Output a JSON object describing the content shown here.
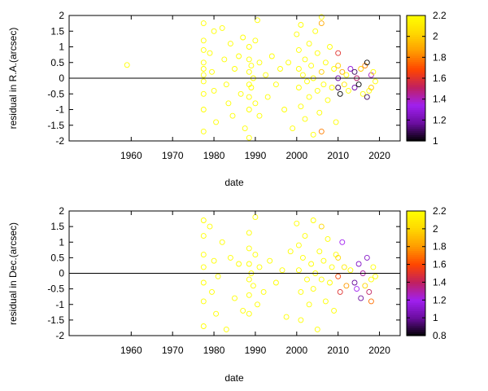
{
  "chart_data": [
    {
      "type": "scatter",
      "xlabel": "date",
      "ylabel": "residual in R.A.(arcsec)",
      "xlim": [
        1945,
        2025
      ],
      "ylim": [
        -2,
        2
      ],
      "x_ticks": [
        1960,
        1970,
        1980,
        1990,
        2000,
        2010,
        2020
      ],
      "y_ticks": [
        -2,
        -1.5,
        -1,
        -0.5,
        0,
        0.5,
        1,
        1.5,
        2
      ],
      "zero_line": 0,
      "grid": false,
      "colorbar": {
        "range": [
          1,
          2.2
        ],
        "ticks": [
          1,
          1.2,
          1.4,
          1.6,
          1.8,
          2,
          2.2
        ],
        "palette": [
          "#000000",
          "#6a0d9e",
          "#a020f0",
          "#c02060",
          "#ff4500",
          "#ff9a00",
          "#ffd700",
          "#ffff00"
        ]
      },
      "series": [
        {
          "marker": "open-circle",
          "points": [
            [
              1959.0,
              0.42,
              2.2
            ],
            [
              1977.5,
              1.75,
              2.2
            ],
            [
              1977.5,
              1.2,
              2.2
            ],
            [
              1977.5,
              0.9,
              2.2
            ],
            [
              1977.5,
              0.5,
              2.2
            ],
            [
              1977.5,
              0.3,
              2.2
            ],
            [
              1977.5,
              0.1,
              2.2
            ],
            [
              1977.5,
              -0.1,
              2.2
            ],
            [
              1977.5,
              -0.5,
              2.2
            ],
            [
              1977.5,
              -1.0,
              2.2
            ],
            [
              1977.5,
              -1.7,
              2.2
            ],
            [
              1979.0,
              0.8,
              2.2
            ],
            [
              1979.5,
              0.2,
              2.2
            ],
            [
              1980.0,
              -0.4,
              2.2
            ],
            [
              1980.5,
              -1.4,
              2.2
            ],
            [
              1980.0,
              1.5,
              2.2
            ],
            [
              1982.0,
              1.6,
              2.2
            ],
            [
              1982.5,
              0.6,
              2.2
            ],
            [
              1983.0,
              -0.2,
              2.2
            ],
            [
              1983.5,
              -0.8,
              2.2
            ],
            [
              1984.0,
              1.1,
              2.2
            ],
            [
              1984.5,
              -1.2,
              2.2
            ],
            [
              1985.0,
              0.3,
              2.2
            ],
            [
              1986.0,
              0.7,
              2.2
            ],
            [
              1986.5,
              -0.5,
              2.2
            ],
            [
              1987.0,
              1.3,
              2.2
            ],
            [
              1987.5,
              -1.6,
              2.2
            ],
            [
              1988.5,
              1.0,
              2.2
            ],
            [
              1988.5,
              0.6,
              2.2
            ],
            [
              1988.5,
              0.2,
              2.2
            ],
            [
              1988.5,
              -0.2,
              2.2
            ],
            [
              1988.5,
              -0.6,
              2.2
            ],
            [
              1988.5,
              -1.0,
              2.2
            ],
            [
              1988.5,
              -1.9,
              2.2
            ],
            [
              1989.0,
              0.4,
              2.2
            ],
            [
              1989.0,
              -0.3,
              2.2
            ],
            [
              1989.5,
              0.0,
              2.2
            ],
            [
              1990.0,
              1.2,
              2.2
            ],
            [
              1990.0,
              -0.8,
              2.2
            ],
            [
              1990.5,
              1.85,
              2.2
            ],
            [
              1991.0,
              0.5,
              2.2
            ],
            [
              1991.0,
              -1.2,
              2.2
            ],
            [
              1992.5,
              0.1,
              2.2
            ],
            [
              1993.0,
              -0.6,
              2.2
            ],
            [
              1994.0,
              0.7,
              2.2
            ],
            [
              1995.0,
              -0.2,
              2.2
            ],
            [
              1996.0,
              0.3,
              2.2
            ],
            [
              1997.0,
              -1.0,
              2.2
            ],
            [
              1998.0,
              0.5,
              2.2
            ],
            [
              1999.0,
              -1.6,
              2.2
            ],
            [
              2000.0,
              1.4,
              2.2
            ],
            [
              2000.5,
              0.9,
              2.2
            ],
            [
              2000.5,
              0.3,
              2.2
            ],
            [
              2000.5,
              -0.3,
              2.2
            ],
            [
              2001.0,
              -0.9,
              2.2
            ],
            [
              2001.0,
              1.7,
              2.2
            ],
            [
              2001.5,
              0.1,
              2.2
            ],
            [
              2002.0,
              -1.3,
              2.2
            ],
            [
              2002.0,
              0.6,
              2.2
            ],
            [
              2002.5,
              -0.1,
              2.2
            ],
            [
              2003.0,
              1.1,
              2.2
            ],
            [
              2003.0,
              -0.6,
              2.2
            ],
            [
              2003.5,
              0.4,
              2.2
            ],
            [
              2004.0,
              -1.8,
              2.2
            ],
            [
              2004.0,
              0.0,
              2.2
            ],
            [
              2004.5,
              1.5,
              2.2
            ],
            [
              2005.0,
              -0.4,
              2.2
            ],
            [
              2005.0,
              0.8,
              2.2
            ],
            [
              2005.5,
              -1.1,
              2.2
            ],
            [
              2006.0,
              1.95,
              2.2
            ],
            [
              2006.0,
              1.75,
              1.9
            ],
            [
              2006.0,
              0.2,
              2.0
            ],
            [
              2006.0,
              -1.7,
              1.8
            ],
            [
              2006.5,
              -0.2,
              2.2
            ],
            [
              2007.0,
              0.5,
              2.2
            ],
            [
              2007.5,
              -0.7,
              2.2
            ],
            [
              2008.0,
              1.0,
              2.2
            ],
            [
              2008.5,
              -0.3,
              2.2
            ],
            [
              2009.0,
              0.3,
              2.2
            ],
            [
              2009.5,
              -1.4,
              2.2
            ],
            [
              2010.0,
              0.8,
              1.6
            ],
            [
              2010.0,
              0.4,
              2.0
            ],
            [
              2010.0,
              0.0,
              1.2
            ],
            [
              2010.0,
              -0.3,
              1.1
            ],
            [
              2010.5,
              -0.5,
              1.0
            ],
            [
              2011.0,
              0.2,
              1.9
            ],
            [
              2011.5,
              -0.2,
              2.1
            ],
            [
              2012.0,
              0.1,
              2.2
            ],
            [
              2012.5,
              -0.4,
              2.2
            ],
            [
              2013.0,
              0.3,
              1.3
            ],
            [
              2014.0,
              0.2,
              1.1
            ],
            [
              2014.0,
              -0.3,
              1.2
            ],
            [
              2014.5,
              0.0,
              1.5
            ],
            [
              2015.0,
              -0.2,
              1.0
            ],
            [
              2015.5,
              0.3,
              2.0
            ],
            [
              2016.0,
              -0.5,
              2.2
            ],
            [
              2016.5,
              0.4,
              1.8
            ],
            [
              2017.0,
              0.5,
              1.0
            ],
            [
              2017.0,
              -0.6,
              1.1
            ],
            [
              2017.5,
              -0.4,
              2.2
            ],
            [
              2018.0,
              0.1,
              1.4
            ],
            [
              2018.0,
              -0.3,
              2.0
            ],
            [
              2018.5,
              0.2,
              2.2
            ],
            [
              2019.0,
              -0.1,
              2.2
            ]
          ]
        }
      ]
    },
    {
      "type": "scatter",
      "xlabel": "date",
      "ylabel": "residual in Dec.(arcsec)",
      "xlim": [
        1945,
        2025
      ],
      "ylim": [
        -2,
        2
      ],
      "x_ticks": [
        1960,
        1970,
        1980,
        1990,
        2000,
        2010,
        2020
      ],
      "y_ticks": [
        -2,
        -1.5,
        -1,
        -0.5,
        0,
        0.5,
        1,
        1.5,
        2
      ],
      "zero_line": 0,
      "grid": false,
      "colorbar": {
        "range": [
          0.8,
          2.2
        ],
        "ticks": [
          0.8,
          1,
          1.2,
          1.4,
          1.6,
          1.8,
          2,
          2.2
        ],
        "palette": [
          "#000000",
          "#6a0d9e",
          "#a020f0",
          "#c02060",
          "#ff4500",
          "#ff9a00",
          "#ffd700",
          "#ffff00"
        ]
      },
      "series": [
        {
          "marker": "open-circle",
          "points": [
            [
              1977.5,
              1.7,
              2.2
            ],
            [
              1977.5,
              1.2,
              2.2
            ],
            [
              1977.5,
              0.6,
              2.2
            ],
            [
              1977.5,
              0.2,
              2.2
            ],
            [
              1977.5,
              -0.3,
              2.2
            ],
            [
              1977.5,
              -0.9,
              2.2
            ],
            [
              1977.5,
              -1.7,
              2.2
            ],
            [
              1979.0,
              1.5,
              2.2
            ],
            [
              1979.5,
              -0.6,
              2.2
            ],
            [
              1980.0,
              0.4,
              2.2
            ],
            [
              1980.5,
              -1.3,
              2.2
            ],
            [
              1981.0,
              -0.1,
              2.2
            ],
            [
              1982.0,
              1.0,
              2.2
            ],
            [
              1983.0,
              -1.8,
              2.2
            ],
            [
              1984.0,
              0.5,
              2.2
            ],
            [
              1985.0,
              -0.8,
              2.2
            ],
            [
              1986.0,
              0.3,
              2.2
            ],
            [
              1987.0,
              -1.2,
              2.2
            ],
            [
              1988.5,
              1.3,
              2.2
            ],
            [
              1988.5,
              0.8,
              2.2
            ],
            [
              1988.5,
              0.3,
              2.2
            ],
            [
              1988.5,
              -0.2,
              2.2
            ],
            [
              1988.5,
              -0.7,
              2.2
            ],
            [
              1988.5,
              -1.3,
              2.2
            ],
            [
              1989.0,
              0.0,
              2.2
            ],
            [
              1989.5,
              -0.4,
              2.2
            ],
            [
              1990.0,
              1.8,
              2.2
            ],
            [
              1990.0,
              0.6,
              2.2
            ],
            [
              1990.5,
              -1.0,
              2.2
            ],
            [
              1991.0,
              0.2,
              2.2
            ],
            [
              1992.0,
              -0.6,
              2.2
            ],
            [
              1993.5,
              0.4,
              2.2
            ],
            [
              1995.0,
              -0.3,
              2.2
            ],
            [
              1996.5,
              0.1,
              2.2
            ],
            [
              1997.5,
              -1.4,
              2.2
            ],
            [
              1998.5,
              0.7,
              2.2
            ],
            [
              2000.0,
              1.6,
              2.2
            ],
            [
              2000.5,
              0.9,
              2.2
            ],
            [
              2000.5,
              0.1,
              2.2
            ],
            [
              2001.0,
              -0.6,
              2.2
            ],
            [
              2001.0,
              -1.5,
              2.2
            ],
            [
              2001.5,
              0.5,
              2.2
            ],
            [
              2002.0,
              1.2,
              2.2
            ],
            [
              2002.5,
              -0.2,
              2.2
            ],
            [
              2003.0,
              -1.0,
              2.2
            ],
            [
              2003.5,
              0.3,
              2.2
            ],
            [
              2004.0,
              1.7,
              2.2
            ],
            [
              2004.0,
              -0.5,
              2.2
            ],
            [
              2004.5,
              0.0,
              2.2
            ],
            [
              2005.0,
              -1.8,
              2.2
            ],
            [
              2005.5,
              0.7,
              2.2
            ],
            [
              2006.0,
              1.5,
              2.0
            ],
            [
              2006.0,
              -0.2,
              2.2
            ],
            [
              2006.5,
              0.4,
              2.2
            ],
            [
              2007.0,
              -0.9,
              2.2
            ],
            [
              2007.5,
              1.1,
              2.2
            ],
            [
              2008.0,
              -0.3,
              2.2
            ],
            [
              2008.5,
              0.2,
              2.2
            ],
            [
              2009.0,
              -1.2,
              2.2
            ],
            [
              2009.5,
              0.6,
              2.2
            ],
            [
              2010.0,
              0.5,
              2.0
            ],
            [
              2010.0,
              -0.1,
              1.6
            ],
            [
              2010.5,
              -0.6,
              1.5
            ],
            [
              2011.0,
              1.0,
              1.2
            ],
            [
              2011.5,
              0.2,
              2.1
            ],
            [
              2012.0,
              -0.4,
              1.8
            ],
            [
              2013.0,
              0.1,
              2.2
            ],
            [
              2014.0,
              -0.3,
              1.0
            ],
            [
              2014.5,
              -0.5,
              1.2
            ],
            [
              2015.0,
              0.3,
              1.1
            ],
            [
              2015.5,
              -0.8,
              1.0
            ],
            [
              2016.0,
              0.0,
              1.3
            ],
            [
              2016.5,
              -0.4,
              2.0
            ],
            [
              2017.0,
              0.5,
              1.1
            ],
            [
              2017.5,
              -0.6,
              1.4
            ],
            [
              2018.0,
              -0.9,
              1.7
            ],
            [
              2018.0,
              -0.2,
              2.2
            ],
            [
              2018.5,
              0.2,
              2.2
            ],
            [
              2019.0,
              -0.1,
              2.2
            ]
          ]
        }
      ]
    }
  ]
}
